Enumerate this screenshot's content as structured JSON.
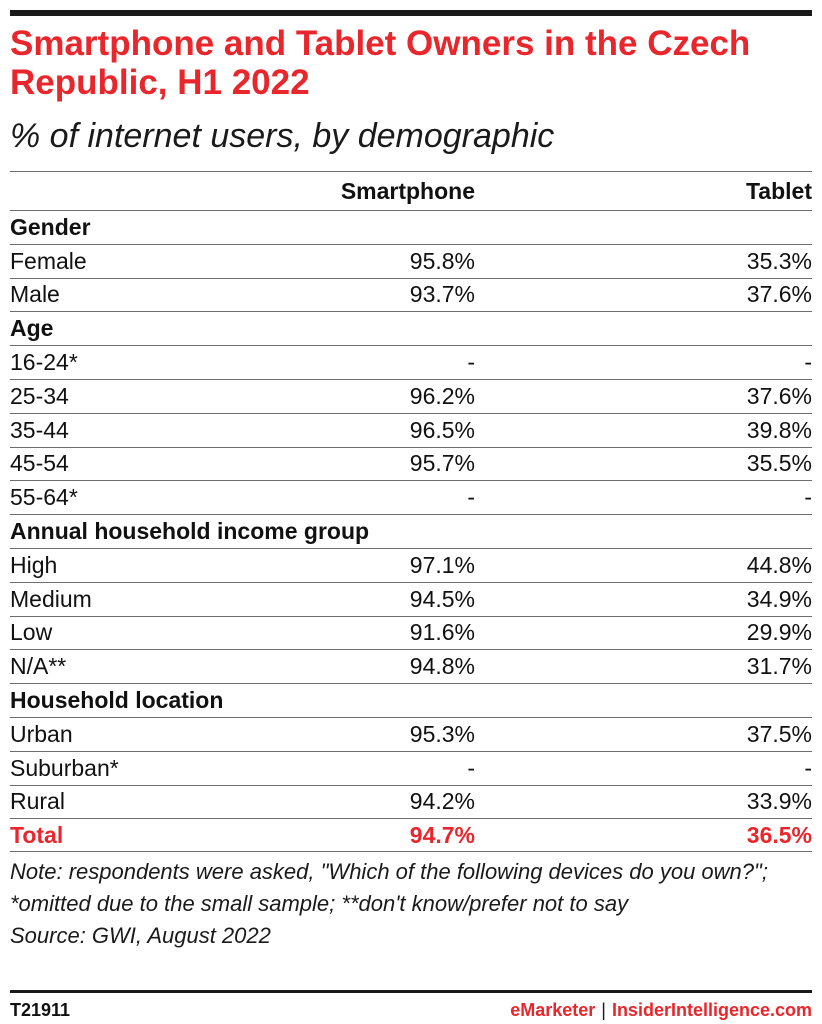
{
  "title": "Smartphone and Tablet Owners in the Czech Republic, H1 2022",
  "subtitle": "% of internet users, by demographic",
  "columns": [
    "Smartphone",
    "Tablet"
  ],
  "rows": [
    {
      "kind": "group",
      "label": "Gender"
    },
    {
      "kind": "data",
      "label": "Female",
      "smartphone": "95.8%",
      "tablet": "35.3%"
    },
    {
      "kind": "data",
      "label": "Male",
      "smartphone": "93.7%",
      "tablet": "37.6%"
    },
    {
      "kind": "group",
      "label": "Age"
    },
    {
      "kind": "data",
      "label": "16-24*",
      "smartphone": "-",
      "tablet": "-"
    },
    {
      "kind": "data",
      "label": "25-34",
      "smartphone": "96.2%",
      "tablet": "37.6%"
    },
    {
      "kind": "data",
      "label": "35-44",
      "smartphone": "96.5%",
      "tablet": "39.8%"
    },
    {
      "kind": "data",
      "label": "45-54",
      "smartphone": "95.7%",
      "tablet": "35.5%"
    },
    {
      "kind": "data",
      "label": "55-64*",
      "smartphone": "-",
      "tablet": "-"
    },
    {
      "kind": "group",
      "label": "Annual household income group"
    },
    {
      "kind": "data",
      "label": "High",
      "smartphone": "97.1%",
      "tablet": "44.8%"
    },
    {
      "kind": "data",
      "label": "Medium",
      "smartphone": "94.5%",
      "tablet": "34.9%"
    },
    {
      "kind": "data",
      "label": "Low",
      "smartphone": "91.6%",
      "tablet": "29.9%"
    },
    {
      "kind": "data",
      "label": "N/A**",
      "smartphone": "94.8%",
      "tablet": "31.7%"
    },
    {
      "kind": "group",
      "label": "Household location"
    },
    {
      "kind": "data",
      "label": "Urban",
      "smartphone": "95.3%",
      "tablet": "37.5%"
    },
    {
      "kind": "data",
      "label": "Suburban*",
      "smartphone": "-",
      "tablet": "-"
    },
    {
      "kind": "data",
      "label": "Rural",
      "smartphone": "94.2%",
      "tablet": "33.9%"
    },
    {
      "kind": "total",
      "label": "Total",
      "smartphone": "94.7%",
      "tablet": "36.5%"
    }
  ],
  "note": "Note: respondents were asked, \"Which of the following devices do you own?\"; *omitted due to the small sample; **don't know/prefer not to say",
  "source": "Source: GWI, August 2022",
  "footer": {
    "code": "T21911",
    "brand_left": "eMarketer",
    "separator": "|",
    "brand_right": "InsiderIntelligence.com"
  },
  "colors": {
    "accent": "#e8262b",
    "text": "#111111",
    "rule": "#1a1a1a"
  },
  "chart_data": {
    "type": "table",
    "title": "Smartphone and Tablet Owners in the Czech Republic, H1 2022",
    "subtitle": "% of internet users, by demographic",
    "columns": [
      "Smartphone",
      "Tablet"
    ],
    "groups": [
      {
        "name": "Gender",
        "rows": [
          {
            "label": "Female",
            "Smartphone": 95.8,
            "Tablet": 35.3
          },
          {
            "label": "Male",
            "Smartphone": 93.7,
            "Tablet": 37.6
          }
        ]
      },
      {
        "name": "Age",
        "rows": [
          {
            "label": "16-24*",
            "Smartphone": null,
            "Tablet": null
          },
          {
            "label": "25-34",
            "Smartphone": 96.2,
            "Tablet": 37.6
          },
          {
            "label": "35-44",
            "Smartphone": 96.5,
            "Tablet": 39.8
          },
          {
            "label": "45-54",
            "Smartphone": 95.7,
            "Tablet": 35.5
          },
          {
            "label": "55-64*",
            "Smartphone": null,
            "Tablet": null
          }
        ]
      },
      {
        "name": "Annual household income group",
        "rows": [
          {
            "label": "High",
            "Smartphone": 97.1,
            "Tablet": 44.8
          },
          {
            "label": "Medium",
            "Smartphone": 94.5,
            "Tablet": 34.9
          },
          {
            "label": "Low",
            "Smartphone": 91.6,
            "Tablet": 29.9
          },
          {
            "label": "N/A**",
            "Smartphone": 94.8,
            "Tablet": 31.7
          }
        ]
      },
      {
        "name": "Household location",
        "rows": [
          {
            "label": "Urban",
            "Smartphone": 95.3,
            "Tablet": 37.5
          },
          {
            "label": "Suburban*",
            "Smartphone": null,
            "Tablet": null
          },
          {
            "label": "Rural",
            "Smartphone": 94.2,
            "Tablet": 33.9
          }
        ]
      }
    ],
    "total": {
      "label": "Total",
      "Smartphone": 94.7,
      "Tablet": 36.5
    }
  }
}
